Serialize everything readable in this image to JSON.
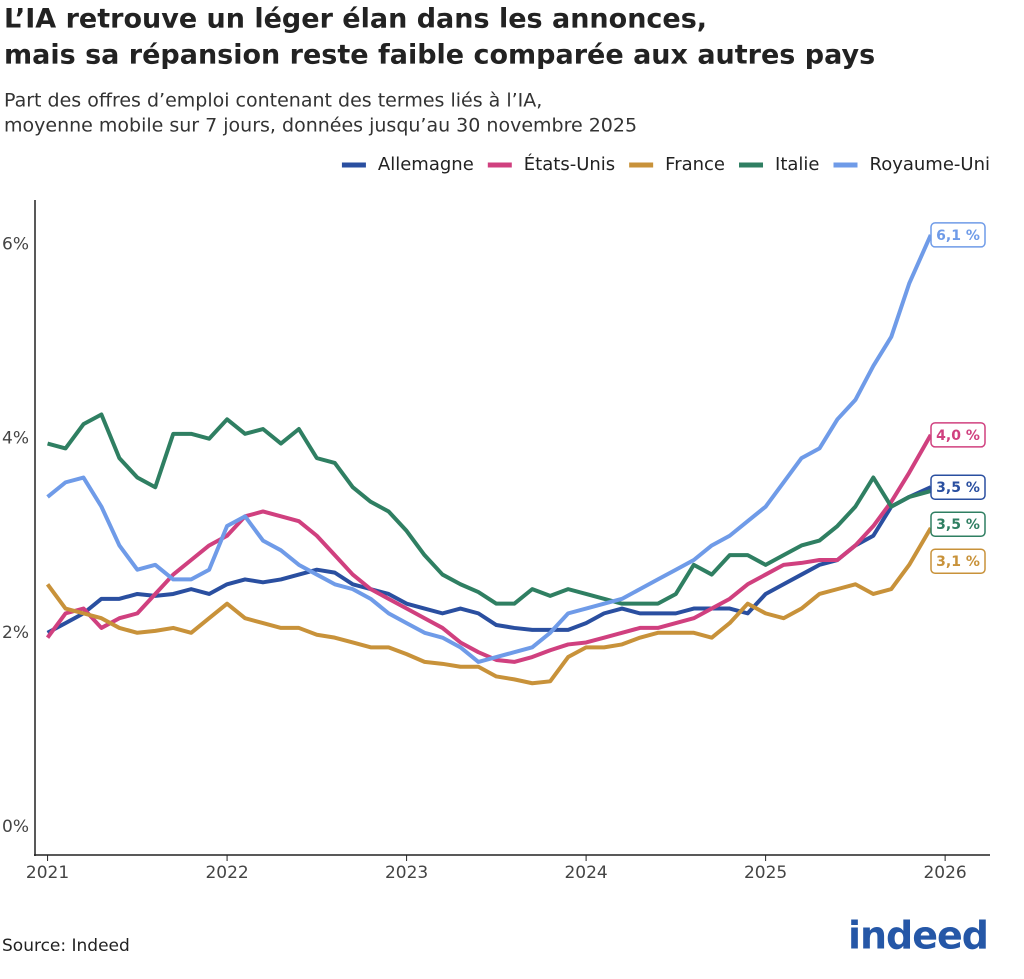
{
  "chart_data": {
    "type": "line",
    "title": [
      "L’IA retrouve un léger élan dans les annonces,",
      "mais sa répansion reste faible comparée aux autres pays"
    ],
    "subtitle": [
      "Part des offres d’emploi contenant des termes liés à l’IA,",
      "moyenne mobile sur 7 jours, données jusqu’au 30 novembre 2025"
    ],
    "source": "Source: Indeed",
    "logo": "indeed",
    "legend": "top-right",
    "xlim": [
      2020.93,
      2026.25
    ],
    "xticks": [
      2021,
      2022,
      2023,
      2024,
      2025,
      2026
    ],
    "ylim": [
      -0.29,
      6.46
    ],
    "yticks": [
      {
        "value": 0,
        "label": "0%"
      },
      {
        "value": 2,
        "label": "2%"
      },
      {
        "value": 4,
        "label": "4%"
      },
      {
        "value": 6,
        "label": "6%"
      }
    ],
    "x": [
      2021.0,
      2021.1,
      2021.2,
      2021.3,
      2021.4,
      2021.5,
      2021.6,
      2021.7,
      2021.8,
      2021.9,
      2022.0,
      2022.1,
      2022.2,
      2022.3,
      2022.4,
      2022.5,
      2022.6,
      2022.7,
      2022.8,
      2022.9,
      2023.0,
      2023.1,
      2023.2,
      2023.3,
      2023.4,
      2023.5,
      2023.6,
      2023.7,
      2023.8,
      2023.9,
      2024.0,
      2024.1,
      2024.2,
      2024.3,
      2024.4,
      2024.5,
      2024.6,
      2024.7,
      2024.8,
      2024.9,
      2025.0,
      2025.1,
      2025.2,
      2025.3,
      2025.4,
      2025.5,
      2025.6,
      2025.7,
      2025.8,
      2025.92
    ],
    "series": [
      {
        "name": "Allemagne",
        "color": "#2a4fa0",
        "values": [
          2.0,
          2.1,
          2.2,
          2.35,
          2.35,
          2.4,
          2.38,
          2.4,
          2.45,
          2.4,
          2.5,
          2.55,
          2.52,
          2.55,
          2.6,
          2.65,
          2.62,
          2.5,
          2.45,
          2.4,
          2.3,
          2.25,
          2.2,
          2.25,
          2.2,
          2.08,
          2.05,
          2.03,
          2.03,
          2.03,
          2.1,
          2.2,
          2.25,
          2.2,
          2.2,
          2.2,
          2.25,
          2.25,
          2.25,
          2.2,
          2.4,
          2.5,
          2.6,
          2.7,
          2.75,
          2.9,
          3.0,
          3.3,
          3.4,
          3.5
        ],
        "value_labels": [
          null,
          null,
          null,
          null,
          null,
          null,
          null,
          null,
          null,
          null,
          null,
          null,
          null,
          null,
          null,
          null,
          null,
          null,
          null,
          null,
          null,
          null,
          null,
          null,
          null,
          null,
          null,
          null,
          null,
          null,
          null,
          null,
          null,
          null,
          null,
          null,
          null,
          null,
          null,
          null,
          null,
          null,
          null,
          null,
          null,
          null,
          null,
          null,
          null,
          "3,5 %"
        ]
      },
      {
        "name": "États-Unis",
        "color": "#d0407f",
        "values": [
          1.95,
          2.2,
          2.25,
          2.05,
          2.15,
          2.2,
          2.4,
          2.6,
          2.75,
          2.9,
          3.0,
          3.2,
          3.25,
          3.2,
          3.15,
          3.0,
          2.8,
          2.6,
          2.45,
          2.35,
          2.25,
          2.15,
          2.05,
          1.9,
          1.8,
          1.72,
          1.7,
          1.75,
          1.82,
          1.88,
          1.9,
          1.95,
          2.0,
          2.05,
          2.05,
          2.1,
          2.15,
          2.25,
          2.35,
          2.5,
          2.6,
          2.7,
          2.72,
          2.75,
          2.75,
          2.9,
          3.1,
          3.35,
          3.65,
          4.04
        ],
        "value_labels": [
          null,
          null,
          null,
          null,
          null,
          null,
          null,
          null,
          null,
          null,
          null,
          null,
          null,
          null,
          null,
          null,
          null,
          null,
          null,
          null,
          null,
          null,
          null,
          null,
          null,
          null,
          null,
          null,
          null,
          null,
          null,
          null,
          null,
          null,
          null,
          null,
          null,
          null,
          null,
          null,
          null,
          null,
          null,
          null,
          null,
          null,
          null,
          null,
          null,
          "4,0 %"
        ]
      },
      {
        "name": "France",
        "color": "#c8923a",
        "values": [
          2.5,
          2.25,
          2.2,
          2.15,
          2.05,
          2.0,
          2.02,
          2.05,
          2.0,
          2.15,
          2.3,
          2.15,
          2.1,
          2.05,
          2.05,
          1.98,
          1.95,
          1.9,
          1.85,
          1.85,
          1.78,
          1.7,
          1.68,
          1.65,
          1.65,
          1.55,
          1.52,
          1.48,
          1.5,
          1.75,
          1.85,
          1.85,
          1.88,
          1.95,
          2.0,
          2.0,
          2.0,
          1.95,
          2.1,
          2.3,
          2.2,
          2.15,
          2.25,
          2.4,
          2.45,
          2.5,
          2.4,
          2.45,
          2.7,
          3.08
        ],
        "value_labels": [
          null,
          null,
          null,
          null,
          null,
          null,
          null,
          null,
          null,
          null,
          null,
          null,
          null,
          null,
          null,
          null,
          null,
          null,
          null,
          null,
          null,
          null,
          null,
          null,
          null,
          null,
          null,
          null,
          null,
          null,
          null,
          null,
          null,
          null,
          null,
          null,
          null,
          null,
          null,
          null,
          null,
          null,
          null,
          null,
          null,
          null,
          null,
          null,
          null,
          "3,1 %"
        ]
      },
      {
        "name": "Italie",
        "color": "#2f7f62",
        "values": [
          3.95,
          3.9,
          4.15,
          4.25,
          3.8,
          3.6,
          3.5,
          4.05,
          4.05,
          4.0,
          4.2,
          4.05,
          4.1,
          3.95,
          4.1,
          3.8,
          3.75,
          3.5,
          3.35,
          3.25,
          3.05,
          2.8,
          2.6,
          2.5,
          2.42,
          2.3,
          2.3,
          2.45,
          2.38,
          2.45,
          2.4,
          2.35,
          2.3,
          2.3,
          2.3,
          2.4,
          2.7,
          2.6,
          2.8,
          2.8,
          2.7,
          2.8,
          2.9,
          2.95,
          3.1,
          3.3,
          3.6,
          3.3,
          3.4,
          3.46
        ],
        "value_labels": [
          null,
          null,
          null,
          null,
          null,
          null,
          null,
          null,
          null,
          null,
          null,
          null,
          null,
          null,
          null,
          null,
          null,
          null,
          null,
          null,
          null,
          null,
          null,
          null,
          null,
          null,
          null,
          null,
          null,
          null,
          null,
          null,
          null,
          null,
          null,
          null,
          null,
          null,
          null,
          null,
          null,
          null,
          null,
          null,
          null,
          null,
          null,
          null,
          null,
          "3,5 %"
        ]
      },
      {
        "name": "Royaume-Uni",
        "color": "#6f9be8",
        "values": [
          3.4,
          3.55,
          3.6,
          3.3,
          2.9,
          2.65,
          2.7,
          2.55,
          2.55,
          2.65,
          3.1,
          3.2,
          2.95,
          2.85,
          2.7,
          2.6,
          2.5,
          2.45,
          2.35,
          2.2,
          2.1,
          2.0,
          1.95,
          1.85,
          1.7,
          1.75,
          1.8,
          1.85,
          2.0,
          2.2,
          2.25,
          2.3,
          2.35,
          2.45,
          2.55,
          2.65,
          2.75,
          2.9,
          3.0,
          3.15,
          3.3,
          3.55,
          3.8,
          3.9,
          4.2,
          4.4,
          4.75,
          5.05,
          5.6,
          6.1
        ],
        "value_labels": [
          null,
          null,
          null,
          null,
          null,
          null,
          null,
          null,
          null,
          null,
          null,
          null,
          null,
          null,
          null,
          null,
          null,
          null,
          null,
          null,
          null,
          null,
          null,
          null,
          null,
          null,
          null,
          null,
          null,
          null,
          null,
          null,
          null,
          null,
          null,
          null,
          null,
          null,
          null,
          null,
          null,
          null,
          null,
          null,
          null,
          null,
          null,
          null,
          null,
          "6,1 %"
        ]
      }
    ]
  }
}
